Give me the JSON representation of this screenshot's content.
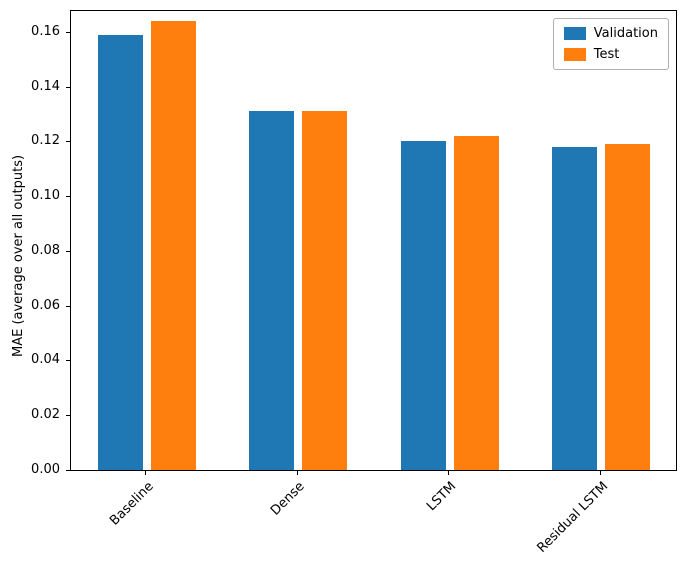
{
  "chart_data": {
    "type": "bar",
    "title": "",
    "xlabel": "",
    "ylabel": "MAE (average over all outputs)",
    "categories": [
      "Baseline",
      "Dense",
      "LSTM",
      "Residual LSTM"
    ],
    "series": [
      {
        "name": "Validation",
        "color": "#1f77b4",
        "values": [
          0.159,
          0.131,
          0.12,
          0.118
        ]
      },
      {
        "name": "Test",
        "color": "#ff7f0e",
        "values": [
          0.164,
          0.131,
          0.122,
          0.119
        ]
      }
    ],
    "ylim": [
      0,
      0.168
    ],
    "yticks": [
      0,
      0.02,
      0.04,
      0.06,
      0.08,
      0.1,
      0.12,
      0.14,
      0.16
    ],
    "ytick_labels": [
      "0.00",
      "0.02",
      "0.04",
      "0.06",
      "0.08",
      "0.10",
      "0.12",
      "0.14",
      "0.16"
    ],
    "legend_position": "upper right",
    "grid": false,
    "background": "#ffffff",
    "axis_color": "#000000"
  }
}
